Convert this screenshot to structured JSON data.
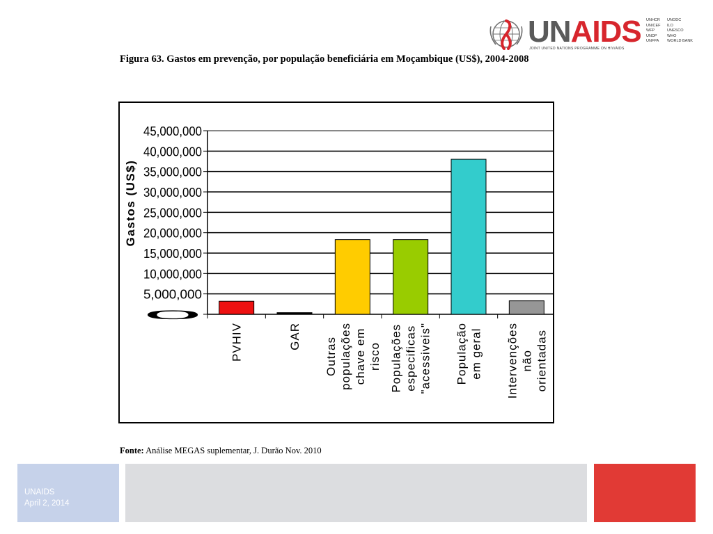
{
  "logo": {
    "wordmark_un": "UN",
    "wordmark_aids": "AIDS",
    "tagline": "JOINT UNITED NATIONS PROGRAMME ON HIV/AIDS",
    "cosponsors_col1": [
      "UNHCR",
      "UNICEF",
      "WFP",
      "UNDP",
      "UNFPA"
    ],
    "cosponsors_col2": [
      "UNODC",
      "ILO",
      "UNESCO",
      "WHO",
      "WORLD BANK"
    ]
  },
  "figure": {
    "title": "Figura 63. Gastos em prevenção, por população beneficiária em Moçambique (US$), 2004-2008"
  },
  "source": {
    "label": "Fonte:",
    "text": " Análise MEGAS suplementar, J. Durão Nov. 2010"
  },
  "footer": {
    "org": "UNAIDS",
    "date": "April 2, 2014"
  },
  "chart_data": {
    "type": "bar",
    "title": "",
    "xlabel": "",
    "ylabel": "Gastos (US$)",
    "ylim": [
      0,
      45000000
    ],
    "yticks": [
      0,
      5000000,
      10000000,
      15000000,
      20000000,
      25000000,
      30000000,
      35000000,
      40000000,
      45000000
    ],
    "ytick_labels": [
      "0",
      "5,000,000",
      "10,000,000",
      "15,000,000",
      "20,000,000",
      "25,000,000",
      "30,000,000",
      "35,000,000",
      "40,000,000",
      "45,000,000"
    ],
    "grid": true,
    "legend": "none",
    "categories": [
      [
        "PVHIV"
      ],
      [
        "GAR"
      ],
      [
        "Outras",
        "populações",
        "chave em",
        "risco"
      ],
      [
        "Populações",
        "especificas",
        "\"acessiveis\""
      ],
      [
        "População",
        "em geral"
      ],
      [
        "Intervenções",
        "não",
        "orientadas"
      ]
    ],
    "values": [
      3200000,
      400000,
      18300000,
      18300000,
      38000000,
      3300000
    ],
    "colors": [
      "#ee1111",
      "#000000",
      "#ffcc00",
      "#99cc00",
      "#33cccc",
      "#969696"
    ]
  }
}
